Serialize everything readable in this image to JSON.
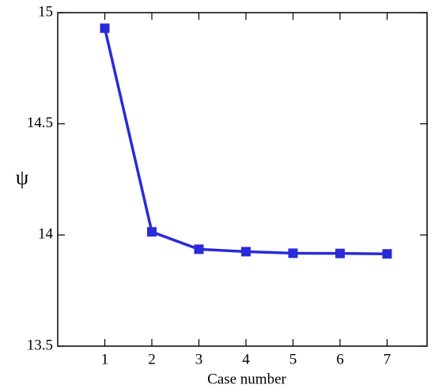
{
  "chart_data": {
    "type": "line",
    "x_label": "Case number",
    "y_label": "ψ",
    "x": [
      1,
      2,
      3,
      4,
      5,
      6,
      7
    ],
    "series": [
      {
        "name": "ψ",
        "color": "#2a2ad8",
        "values": [
          14.93,
          14.014,
          13.936,
          13.925,
          13.918,
          13.917,
          13.915
        ]
      }
    ],
    "xlim": [
      0,
      7.85
    ],
    "xticks": [
      1,
      2,
      3,
      4,
      5,
      6,
      7
    ],
    "ylim": [
      13.5,
      15
    ],
    "yticks": [
      13.5,
      14,
      14.5,
      15
    ],
    "marker": "square"
  }
}
